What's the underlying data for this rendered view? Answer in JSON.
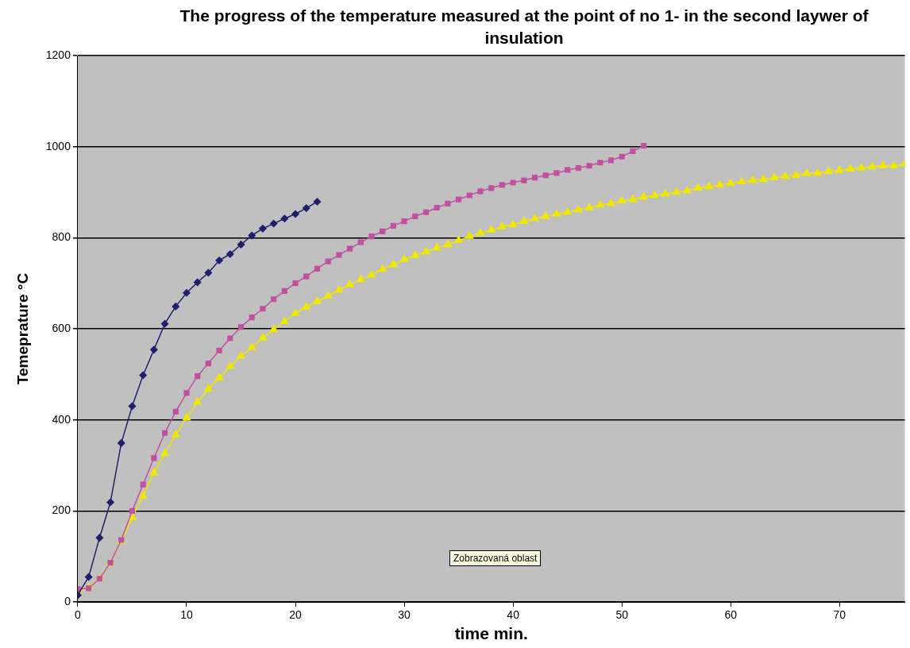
{
  "chart_data": {
    "type": "line",
    "title": "The progress of the temperature measured at the point of no 1- in the second laywer of insulation",
    "xlabel": "time min.",
    "ylabel": "Temeprature °C",
    "annotations": [
      "Zobrazovaná oblast"
    ],
    "xlim": [
      0,
      76
    ],
    "xticks": [
      0,
      10,
      20,
      30,
      40,
      50,
      60,
      70
    ],
    "ylim": [
      0,
      1200
    ],
    "yticks": [
      0,
      200,
      400,
      600,
      800,
      1000,
      1200
    ],
    "grid": "y",
    "legend": false,
    "series": [
      {
        "color": "#1f1f6b",
        "marker": "diamond",
        "x": [
          0,
          1,
          2,
          3,
          4,
          5,
          6,
          7,
          8,
          9,
          10,
          11,
          12,
          13,
          14,
          15,
          16,
          17,
          18,
          19,
          20,
          21,
          22
        ],
        "values": [
          15,
          55,
          141,
          219,
          349,
          430,
          498,
          554,
          611,
          649,
          679,
          702,
          723,
          750,
          764,
          785,
          805,
          820,
          831,
          842,
          852,
          865,
          879
        ]
      },
      {
        "color": "#c050a0",
        "marker": "square",
        "x": [
          0,
          1,
          2,
          3,
          4,
          5,
          6,
          7,
          8,
          9,
          10,
          11,
          12,
          13,
          14,
          15,
          16,
          17,
          18,
          19,
          20,
          21,
          22,
          23,
          24,
          25,
          26,
          27,
          28,
          29,
          30,
          31,
          32,
          33,
          34,
          35,
          36,
          37,
          38,
          39,
          40,
          41,
          42,
          43,
          44,
          45,
          46,
          47,
          48,
          49,
          50,
          51,
          52
        ],
        "values": [
          28,
          30,
          51,
          86,
          136,
          200,
          258,
          316,
          371,
          418,
          459,
          496,
          524,
          552,
          579,
          604,
          625,
          644,
          665,
          683,
          700,
          715,
          732,
          748,
          762,
          776,
          790,
          803,
          814,
          826,
          836,
          847,
          856,
          866,
          875,
          884,
          893,
          902,
          909,
          916,
          921,
          926,
          932,
          937,
          942,
          949,
          953,
          958,
          965,
          970,
          978,
          990,
          1002
        ]
      },
      {
        "color": "#f0e800",
        "marker": "triangle",
        "x": [
          0,
          1,
          2,
          3,
          4,
          5,
          6,
          7,
          8,
          9,
          10,
          11,
          12,
          13,
          14,
          15,
          16,
          17,
          18,
          19,
          20,
          21,
          22,
          23,
          24,
          25,
          26,
          27,
          28,
          29,
          30,
          31,
          32,
          33,
          34,
          35,
          36,
          37,
          38,
          39,
          40,
          41,
          42,
          43,
          44,
          45,
          46,
          47,
          48,
          49,
          50,
          51,
          52,
          53,
          54,
          55,
          56,
          57,
          58,
          59,
          60,
          61,
          62,
          63,
          64,
          65,
          66,
          67,
          68,
          69,
          70,
          71,
          72,
          73,
          74,
          75,
          76
        ],
        "values": [
          21,
          32,
          51,
          85,
          134,
          185,
          233,
          284,
          326,
          367,
          404,
          439,
          468,
          492,
          517,
          540,
          559,
          580,
          598,
          616,
          634,
          648,
          660,
          672,
          685,
          697,
          708,
          718,
          731,
          741,
          752,
          761,
          769,
          778,
          785,
          794,
          803,
          810,
          817,
          824,
          829,
          836,
          842,
          847,
          852,
          856,
          861,
          866,
          872,
          875,
          881,
          884,
          889,
          893,
          896,
          900,
          903,
          909,
          912,
          916,
          919,
          923,
          926,
          928,
          932,
          935,
          937,
          941,
          942,
          946,
          948,
          951,
          953,
          956,
          958,
          958,
          962
        ]
      }
    ]
  }
}
